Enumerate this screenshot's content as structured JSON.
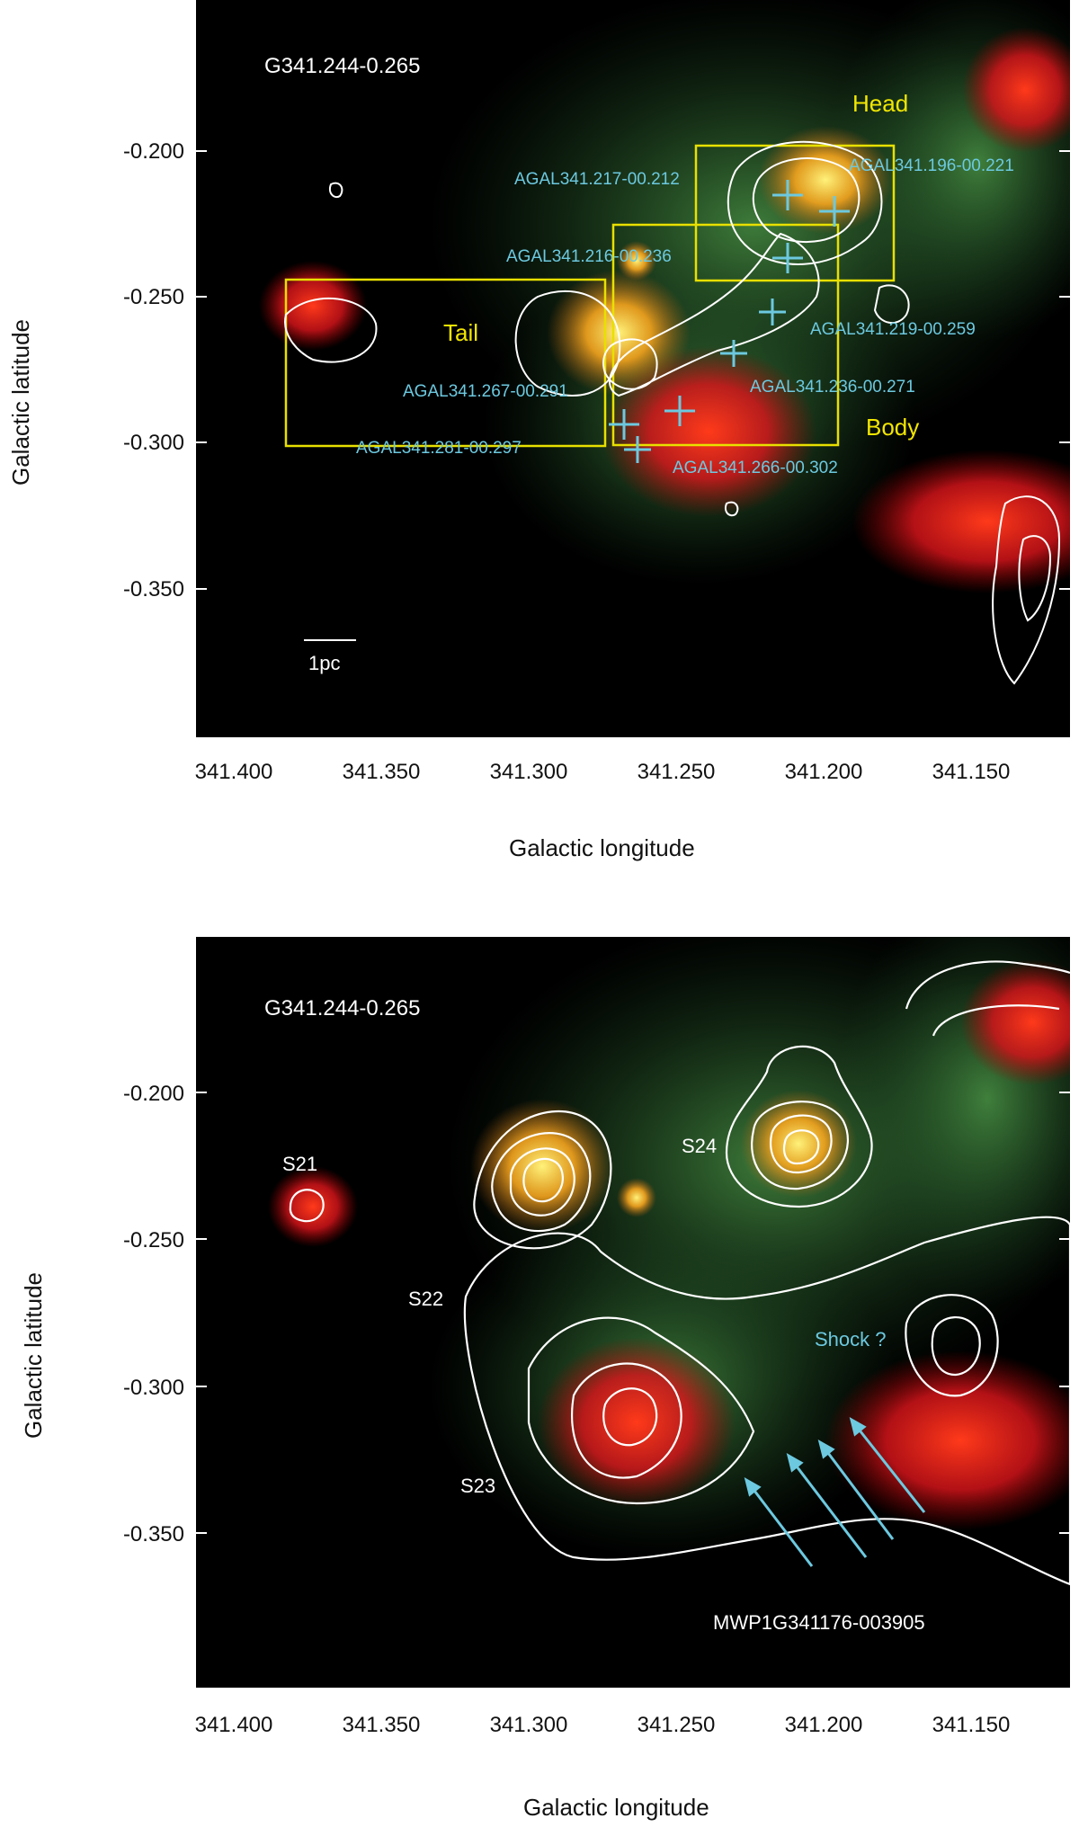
{
  "top_panel": {
    "field_label": "G341.244-0.265",
    "region_labels": [
      "Head",
      "Tail",
      "Body"
    ],
    "clump_labels": [
      "AGAL341.217-00.212",
      "AGAL341.196-00.221",
      "AGAL341.216-00.236",
      "AGAL341.219-00.259",
      "AGAL341.267-00.291",
      "AGAL341.236-00.271",
      "AGAL341.281-00.297",
      "AGAL341.266-00.302"
    ],
    "scale_bar_label": "1pc",
    "y_ticks": [
      "-0.200",
      "-0.250",
      "-0.300",
      "-0.350"
    ],
    "x_ticks": [
      "341.400",
      "341.350",
      "341.300",
      "341.250",
      "341.200",
      "341.150"
    ],
    "xlabel": "Galactic longitude",
    "ylabel": "Galactic latitude"
  },
  "bottom_panel": {
    "field_label": "G341.244-0.265",
    "source_labels": [
      "S21",
      "S22",
      "S23",
      "S24"
    ],
    "shock_label": "Shock ?",
    "bubble_label": "MWP1G341176-003905",
    "y_ticks": [
      "-0.200",
      "-0.250",
      "-0.300",
      "-0.350"
    ],
    "x_ticks": [
      "341.400",
      "341.350",
      "341.300",
      "341.250",
      "341.200",
      "341.150"
    ],
    "xlabel": "Galactic longitude",
    "ylabel": "Galactic latitude"
  },
  "colors": {
    "label_yellow": "#f2e600",
    "label_cyan": "#6cc9e0",
    "contour_white": "#ffffff",
    "emission_red": "#e01818",
    "emission_green": "#2f8a3a",
    "box_yellow": "#e8e000"
  }
}
